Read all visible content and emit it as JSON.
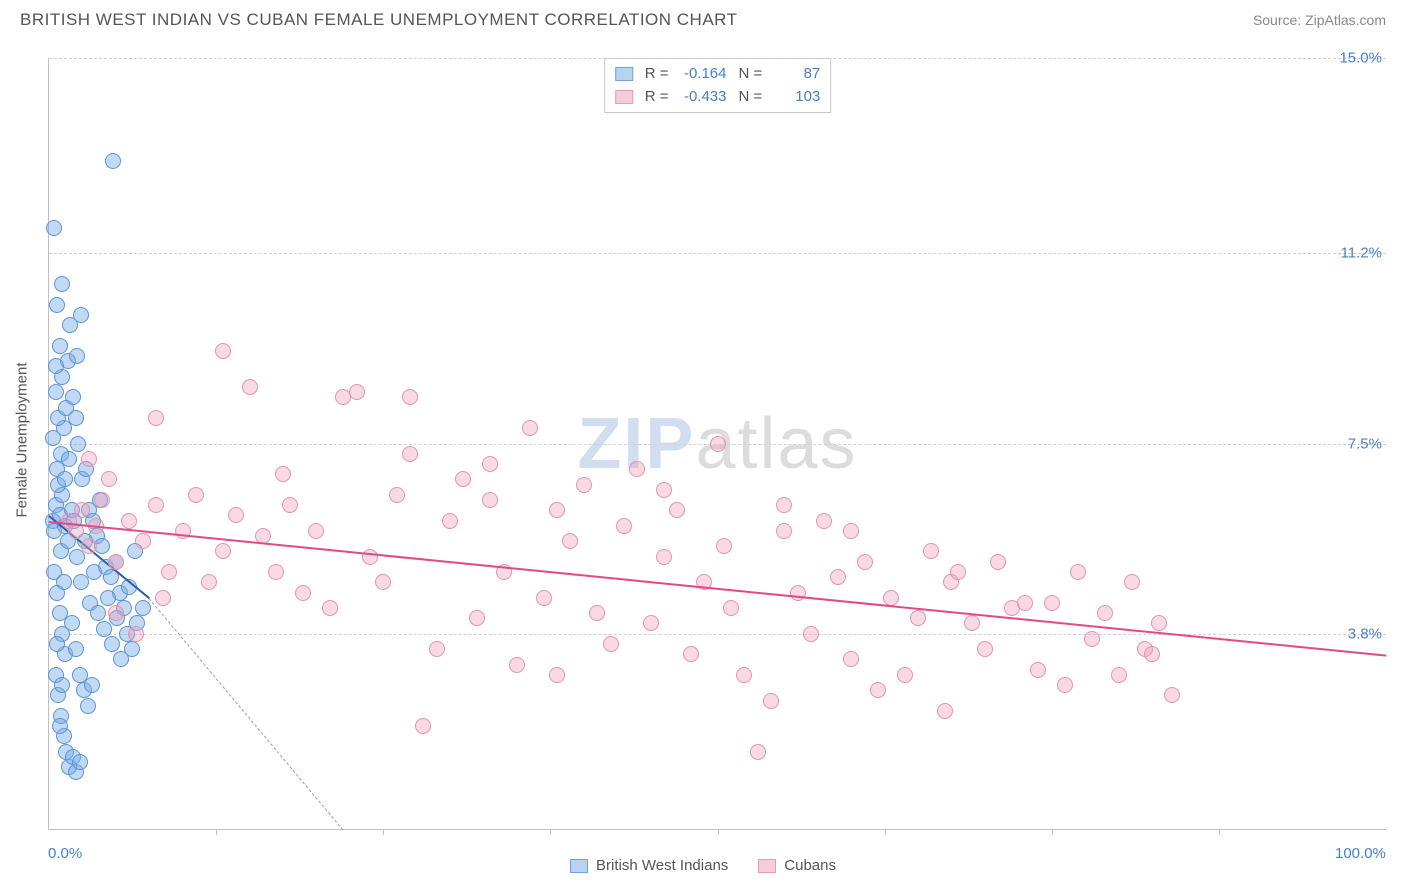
{
  "title": "BRITISH WEST INDIAN VS CUBAN FEMALE UNEMPLOYMENT CORRELATION CHART",
  "source": "Source: ZipAtlas.com",
  "ylabel": "Female Unemployment",
  "watermark_a": "ZIP",
  "watermark_b": "atlas",
  "chart": {
    "type": "scatter",
    "xlim": [
      0,
      100
    ],
    "ylim": [
      0,
      15
    ],
    "x_ticks": [
      0,
      100
    ],
    "x_tick_labels": [
      "0.0%",
      "100.0%"
    ],
    "x_minor_ticks": [
      12.5,
      25,
      37.5,
      50,
      62.5,
      75,
      87.5
    ],
    "y_ticks": [
      3.8,
      7.5,
      11.2,
      15.0
    ],
    "y_tick_labels": [
      "3.8%",
      "7.5%",
      "11.2%",
      "15.0%"
    ],
    "background_color": "#ffffff",
    "grid_color": "#d0d0d0",
    "point_radius": 8,
    "series": [
      {
        "name": "British West Indians",
        "color_fill": "rgba(120,170,230,0.45)",
        "color_stroke": "#5a94d6",
        "swatch_fill": "#b8d3ef",
        "swatch_stroke": "#6aa3dd",
        "R": "-0.164",
        "N": "87",
        "reg": {
          "x1": 0,
          "y1": 6.1,
          "x2": 7.5,
          "y2": 4.5,
          "color": "#2a5fb0",
          "width": 2
        },
        "reg_ext": {
          "x1": 7.5,
          "y1": 4.5,
          "x2": 22,
          "y2": 0,
          "color": "#a0a0a0",
          "dash": true
        },
        "points": [
          [
            0.3,
            6.0
          ],
          [
            0.5,
            6.3
          ],
          [
            0.4,
            5.8
          ],
          [
            0.8,
            6.1
          ],
          [
            1.0,
            6.5
          ],
          [
            1.2,
            5.9
          ],
          [
            0.6,
            7.0
          ],
          [
            0.9,
            7.3
          ],
          [
            1.1,
            7.8
          ],
          [
            0.7,
            8.0
          ],
          [
            1.3,
            8.2
          ],
          [
            0.5,
            8.5
          ],
          [
            1.0,
            8.8
          ],
          [
            1.4,
            9.1
          ],
          [
            0.8,
            9.4
          ],
          [
            1.6,
            9.8
          ],
          [
            2.0,
            8.0
          ],
          [
            2.2,
            7.5
          ],
          [
            2.5,
            6.8
          ],
          [
            2.8,
            7.0
          ],
          [
            3.0,
            6.2
          ],
          [
            3.3,
            6.0
          ],
          [
            3.6,
            5.7
          ],
          [
            3.8,
            6.4
          ],
          [
            4.0,
            5.5
          ],
          [
            4.3,
            5.1
          ],
          [
            4.6,
            4.9
          ],
          [
            5.0,
            5.2
          ],
          [
            5.3,
            4.6
          ],
          [
            5.6,
            4.3
          ],
          [
            6.0,
            4.7
          ],
          [
            6.4,
            5.4
          ],
          [
            0.4,
            5.0
          ],
          [
            0.6,
            4.6
          ],
          [
            0.8,
            4.2
          ],
          [
            1.0,
            3.8
          ],
          [
            1.2,
            3.4
          ],
          [
            0.5,
            3.0
          ],
          [
            0.7,
            2.6
          ],
          [
            0.9,
            2.2
          ],
          [
            1.1,
            1.8
          ],
          [
            1.3,
            1.5
          ],
          [
            1.5,
            1.2
          ],
          [
            1.8,
            1.4
          ],
          [
            2.0,
            1.1
          ],
          [
            2.3,
            1.3
          ],
          [
            0.6,
            10.2
          ],
          [
            1.0,
            10.6
          ],
          [
            0.4,
            11.7
          ],
          [
            4.8,
            13.0
          ],
          [
            0.9,
            5.4
          ],
          [
            1.7,
            6.2
          ],
          [
            2.1,
            5.3
          ],
          [
            2.4,
            4.8
          ],
          [
            2.7,
            5.6
          ],
          [
            3.1,
            4.4
          ],
          [
            3.4,
            5.0
          ],
          [
            3.7,
            4.2
          ],
          [
            4.1,
            3.9
          ],
          [
            4.4,
            4.5
          ],
          [
            4.7,
            3.6
          ],
          [
            5.1,
            4.1
          ],
          [
            5.4,
            3.3
          ],
          [
            5.8,
            3.8
          ],
          [
            6.2,
            3.5
          ],
          [
            6.6,
            4.0
          ],
          [
            7.0,
            4.3
          ],
          [
            0.3,
            7.6
          ],
          [
            0.5,
            9.0
          ],
          [
            0.7,
            6.7
          ],
          [
            1.1,
            4.8
          ],
          [
            1.4,
            5.6
          ],
          [
            1.7,
            4.0
          ],
          [
            2.0,
            3.5
          ],
          [
            2.3,
            3.0
          ],
          [
            2.6,
            2.7
          ],
          [
            2.9,
            2.4
          ],
          [
            3.2,
            2.8
          ],
          [
            1.5,
            7.2
          ],
          [
            1.8,
            8.4
          ],
          [
            2.1,
            9.2
          ],
          [
            2.4,
            10.0
          ],
          [
            0.6,
            3.6
          ],
          [
            0.8,
            2.0
          ],
          [
            1.0,
            2.8
          ],
          [
            1.2,
            6.8
          ],
          [
            1.9,
            6.0
          ]
        ]
      },
      {
        "name": "Cubans",
        "color_fill": "rgba(240,160,185,0.40)",
        "color_stroke": "#e493b0",
        "swatch_fill": "#f4cdd8",
        "swatch_stroke": "#e69ab4",
        "R": "-0.433",
        "N": "103",
        "reg": {
          "x1": 0,
          "y1": 6.0,
          "x2": 100,
          "y2": 3.4,
          "color": "#e14a82",
          "width": 2
        },
        "points": [
          [
            1.5,
            6.0
          ],
          [
            2.0,
            5.8
          ],
          [
            2.5,
            6.2
          ],
          [
            3.0,
            5.5
          ],
          [
            3.5,
            5.9
          ],
          [
            4.0,
            6.4
          ],
          [
            5.0,
            5.2
          ],
          [
            6.0,
            6.0
          ],
          [
            7.0,
            5.6
          ],
          [
            8.0,
            6.3
          ],
          [
            9.0,
            5.0
          ],
          [
            10.0,
            5.8
          ],
          [
            11.0,
            6.5
          ],
          [
            12.0,
            4.8
          ],
          [
            13.0,
            5.4
          ],
          [
            14.0,
            6.1
          ],
          [
            15.0,
            8.6
          ],
          [
            16.0,
            5.7
          ],
          [
            17.0,
            5.0
          ],
          [
            18.0,
            6.3
          ],
          [
            19.0,
            4.6
          ],
          [
            20.0,
            5.8
          ],
          [
            21.0,
            4.3
          ],
          [
            22.0,
            8.4
          ],
          [
            23.0,
            8.5
          ],
          [
            24.0,
            5.3
          ],
          [
            25.0,
            4.8
          ],
          [
            26.0,
            6.5
          ],
          [
            27.0,
            8.4
          ],
          [
            28.0,
            2.0
          ],
          [
            29.0,
            3.5
          ],
          [
            30.0,
            6.0
          ],
          [
            31.0,
            6.8
          ],
          [
            32.0,
            4.1
          ],
          [
            33.0,
            6.4
          ],
          [
            34.0,
            5.0
          ],
          [
            35.0,
            3.2
          ],
          [
            36.0,
            7.8
          ],
          [
            37.0,
            4.5
          ],
          [
            38.0,
            3.0
          ],
          [
            39.0,
            5.6
          ],
          [
            40.0,
            6.7
          ],
          [
            41.0,
            4.2
          ],
          [
            42.0,
            3.6
          ],
          [
            43.0,
            5.9
          ],
          [
            44.0,
            7.0
          ],
          [
            45.0,
            4.0
          ],
          [
            46.0,
            5.3
          ],
          [
            47.0,
            6.2
          ],
          [
            48.0,
            3.4
          ],
          [
            49.0,
            4.8
          ],
          [
            50.0,
            7.5
          ],
          [
            50.5,
            5.5
          ],
          [
            51.0,
            4.3
          ],
          [
            52.0,
            3.0
          ],
          [
            53.0,
            1.5
          ],
          [
            54.0,
            2.5
          ],
          [
            55.0,
            5.8
          ],
          [
            56.0,
            4.6
          ],
          [
            57.0,
            3.8
          ],
          [
            58.0,
            6.0
          ],
          [
            59.0,
            4.9
          ],
          [
            60.0,
            3.3
          ],
          [
            61.0,
            5.2
          ],
          [
            62.0,
            2.7
          ],
          [
            63.0,
            4.5
          ],
          [
            64.0,
            3.0
          ],
          [
            65.0,
            4.1
          ],
          [
            66.0,
            5.4
          ],
          [
            67.0,
            2.3
          ],
          [
            67.5,
            4.8
          ],
          [
            68.0,
            5.0
          ],
          [
            69.0,
            4.0
          ],
          [
            70.0,
            3.5
          ],
          [
            71.0,
            5.2
          ],
          [
            72.0,
            4.3
          ],
          [
            73.0,
            4.4
          ],
          [
            74.0,
            3.1
          ],
          [
            75.0,
            4.4
          ],
          [
            76.0,
            2.8
          ],
          [
            77.0,
            5.0
          ],
          [
            78.0,
            3.7
          ],
          [
            79.0,
            4.2
          ],
          [
            80.0,
            3.0
          ],
          [
            81.0,
            4.8
          ],
          [
            82.0,
            3.5
          ],
          [
            83.0,
            4.0
          ],
          [
            84.0,
            2.6
          ],
          [
            82.5,
            3.4
          ],
          [
            13.0,
            9.3
          ],
          [
            8.0,
            8.0
          ],
          [
            17.5,
            6.9
          ],
          [
            27.0,
            7.3
          ],
          [
            33.0,
            7.1
          ],
          [
            38.0,
            6.2
          ],
          [
            46.0,
            6.6
          ],
          [
            55.0,
            6.3
          ],
          [
            60.0,
            5.8
          ],
          [
            3.0,
            7.2
          ],
          [
            5.0,
            4.2
          ],
          [
            6.5,
            3.8
          ],
          [
            8.5,
            4.5
          ],
          [
            4.5,
            6.8
          ]
        ]
      }
    ]
  },
  "legend": {
    "items": [
      "British West Indians",
      "Cubans"
    ]
  },
  "stats_labels": {
    "R": "R =",
    "N": "N ="
  }
}
